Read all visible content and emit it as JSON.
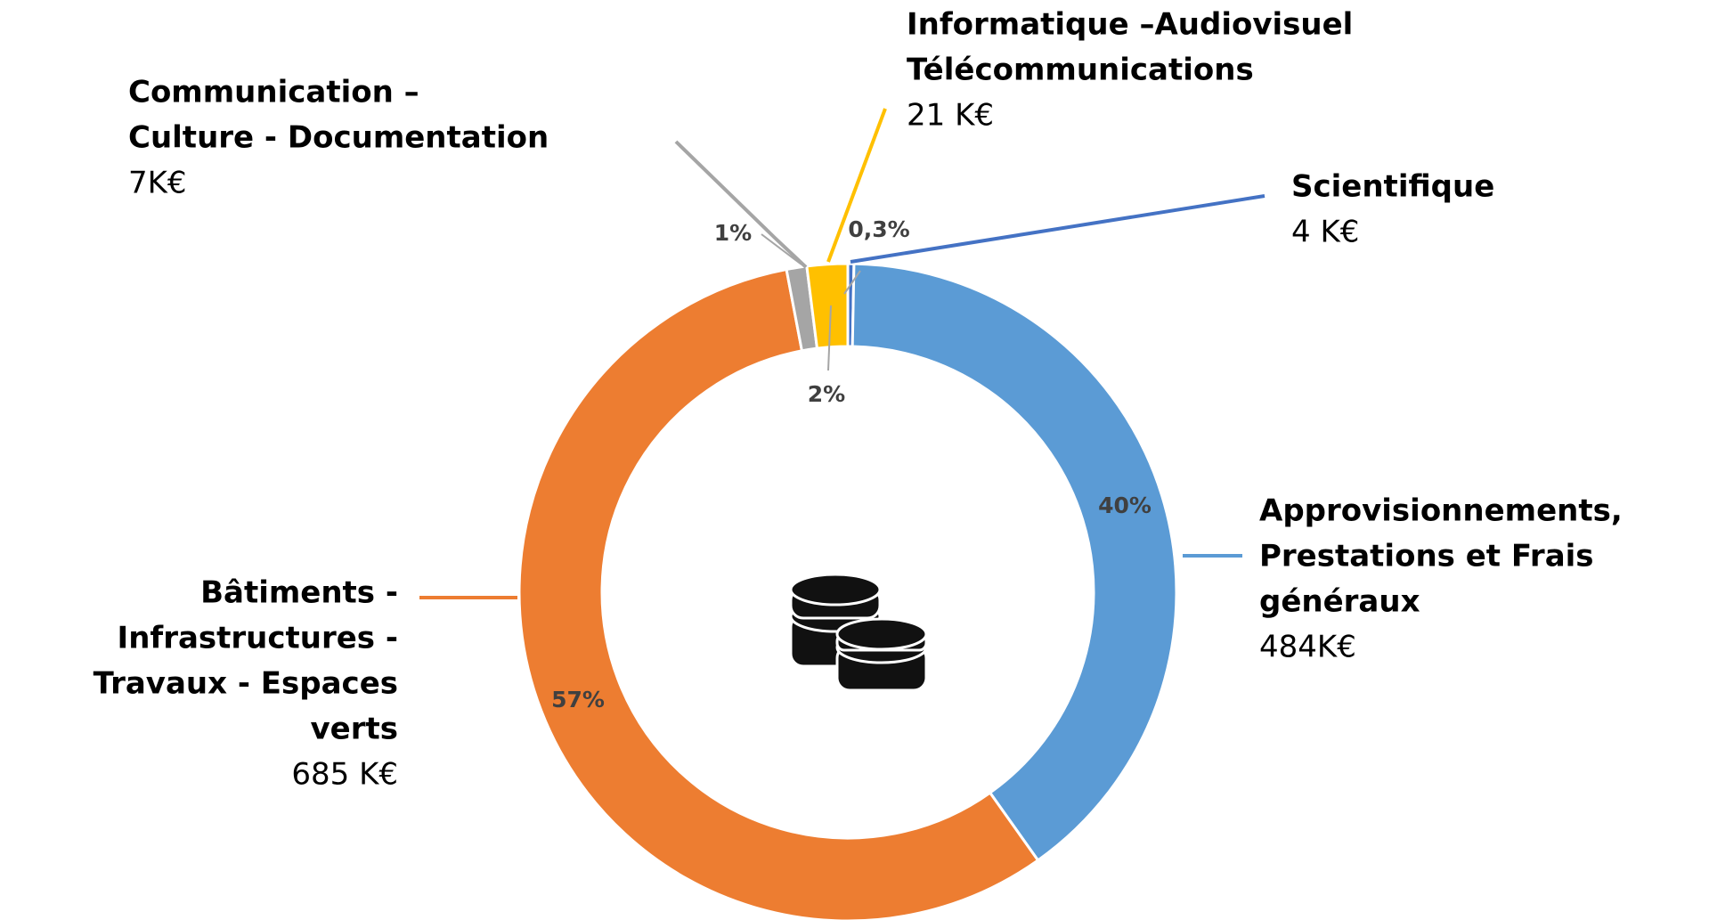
{
  "chart_data": {
    "type": "donut",
    "categories": [
      [
        "Scientifique"
      ],
      [
        "Approvisionnements,",
        "Prestations et Frais",
        "généraux"
      ],
      [
        "Bâtiments -",
        "Infrastructures -",
        "Travaux - Espaces",
        "verts"
      ],
      [
        "Communication –",
        "Culture - Documentation"
      ],
      [
        "Informatique –Audiovisuel",
        "Télécommunications"
      ]
    ],
    "values": [
      0.3,
      40,
      57,
      1,
      2
    ],
    "value_labels": [
      "0,3%",
      "40%",
      "57%",
      "1%",
      "2%"
    ],
    "amounts": [
      4,
      484,
      685,
      7,
      21
    ],
    "amount_labels": [
      "4 K€",
      "484K€",
      "685 K€",
      "7K€",
      "21 K€"
    ],
    "colors": [
      "#4472c4",
      "#5b9bd5",
      "#ed7d31",
      "#a5a5a5",
      "#ffc000"
    ]
  }
}
